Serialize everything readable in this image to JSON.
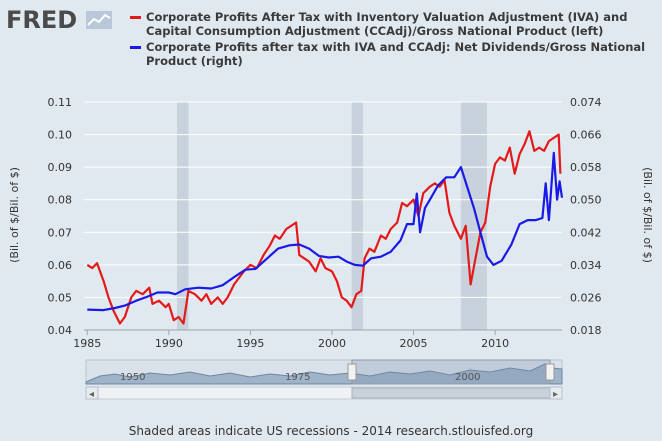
{
  "header": {
    "logo_text": "FRED",
    "logo_icon": "chart-line-icon"
  },
  "legend": {
    "items": [
      {
        "label": "Corporate Profits After Tax with Inventory Valuation Adjustment (IVA) and Capital Consumption Adjustment (CCAdj)/Gross National Product (left)",
        "color": "#e41a1a"
      },
      {
        "label": "Corporate Profits after tax with IVA and CCAdj: Net Dividends/Gross National Product (right)",
        "color": "#1a1ae6"
      }
    ]
  },
  "footer": {
    "text": "Shaded areas indicate US recessions - 2014 research.stlouisfed.org"
  },
  "navigator": {
    "labels": [
      "1950",
      "1975",
      "2000"
    ],
    "left_arrow": "◂",
    "right_arrow": "▸"
  },
  "chart_data": {
    "type": "line",
    "ylabel_left": "(Bil. of $/Bil. of $)",
    "ylabel_right": "(Bil. of $/Bil. of $)",
    "x_ticks": [
      1985,
      1990,
      1995,
      2000,
      2005,
      2010
    ],
    "y_left_ticks": [
      "0.04",
      "0.05",
      "0.06",
      "0.07",
      "0.08",
      "0.09",
      "0.10",
      "0.11"
    ],
    "y_right_ticks": [
      "0.018",
      "0.026",
      "0.034",
      "0.042",
      "0.050",
      "0.058",
      "0.066",
      "0.074"
    ],
    "xlim": [
      1984.8,
      2014.1
    ],
    "ylim_left": [
      0.04,
      0.11
    ],
    "ylim_right": [
      0.018,
      0.074
    ],
    "recessions": [
      [
        1990.5,
        1991.2
      ],
      [
        2001.2,
        2001.9
      ],
      [
        2007.9,
        2009.5
      ]
    ],
    "series": [
      {
        "name": "Corporate Profits After Tax with Inventory Valuation Adjustment (IVA) and Capital Consumption Adjustment (CCAdj)/Gross National Product (left)",
        "axis": "left",
        "color": "#e41a1a",
        "points": [
          [
            1985.0,
            0.06
          ],
          [
            1985.3,
            0.059
          ],
          [
            1985.6,
            0.0605
          ],
          [
            1986.0,
            0.055
          ],
          [
            1986.3,
            0.05
          ],
          [
            1986.6,
            0.046
          ],
          [
            1987.0,
            0.042
          ],
          [
            1987.3,
            0.044
          ],
          [
            1987.7,
            0.05
          ],
          [
            1988.0,
            0.052
          ],
          [
            1988.4,
            0.051
          ],
          [
            1988.8,
            0.053
          ],
          [
            1989.0,
            0.048
          ],
          [
            1989.4,
            0.049
          ],
          [
            1989.8,
            0.047
          ],
          [
            1990.0,
            0.048
          ],
          [
            1990.3,
            0.043
          ],
          [
            1990.6,
            0.044
          ],
          [
            1990.9,
            0.042
          ],
          [
            1991.2,
            0.052
          ],
          [
            1991.6,
            0.051
          ],
          [
            1992.0,
            0.049
          ],
          [
            1992.3,
            0.051
          ],
          [
            1992.6,
            0.048
          ],
          [
            1993.0,
            0.05
          ],
          [
            1993.3,
            0.048
          ],
          [
            1993.6,
            0.05
          ],
          [
            1994.0,
            0.054
          ],
          [
            1994.3,
            0.056
          ],
          [
            1994.6,
            0.058
          ],
          [
            1995.0,
            0.06
          ],
          [
            1995.4,
            0.059
          ],
          [
            1995.8,
            0.063
          ],
          [
            1996.2,
            0.066
          ],
          [
            1996.5,
            0.069
          ],
          [
            1996.8,
            0.068
          ],
          [
            1997.2,
            0.071
          ],
          [
            1997.5,
            0.072
          ],
          [
            1997.8,
            0.073
          ],
          [
            1998.0,
            0.063
          ],
          [
            1998.3,
            0.062
          ],
          [
            1998.6,
            0.061
          ],
          [
            1999.0,
            0.058
          ],
          [
            1999.3,
            0.062
          ],
          [
            1999.6,
            0.059
          ],
          [
            2000.0,
            0.058
          ],
          [
            2000.3,
            0.055
          ],
          [
            2000.6,
            0.05
          ],
          [
            2000.9,
            0.049
          ],
          [
            2001.2,
            0.047
          ],
          [
            2001.5,
            0.051
          ],
          [
            2001.8,
            0.052
          ],
          [
            2002.0,
            0.062
          ],
          [
            2002.3,
            0.065
          ],
          [
            2002.6,
            0.064
          ],
          [
            2003.0,
            0.069
          ],
          [
            2003.3,
            0.068
          ],
          [
            2003.6,
            0.071
          ],
          [
            2004.0,
            0.073
          ],
          [
            2004.3,
            0.079
          ],
          [
            2004.6,
            0.078
          ],
          [
            2005.0,
            0.08
          ],
          [
            2005.3,
            0.075
          ],
          [
            2005.6,
            0.082
          ],
          [
            2006.0,
            0.084
          ],
          [
            2006.3,
            0.085
          ],
          [
            2006.6,
            0.084
          ],
          [
            2006.9,
            0.086
          ],
          [
            2007.2,
            0.076
          ],
          [
            2007.5,
            0.072
          ],
          [
            2007.9,
            0.068
          ],
          [
            2008.2,
            0.072
          ],
          [
            2008.5,
            0.054
          ],
          [
            2008.8,
            0.062
          ],
          [
            2009.1,
            0.07
          ],
          [
            2009.4,
            0.073
          ],
          [
            2009.7,
            0.084
          ],
          [
            2010.0,
            0.091
          ],
          [
            2010.3,
            0.093
          ],
          [
            2010.6,
            0.092
          ],
          [
            2010.9,
            0.096
          ],
          [
            2011.2,
            0.088
          ],
          [
            2011.5,
            0.094
          ],
          [
            2011.8,
            0.097
          ],
          [
            2012.1,
            0.101
          ],
          [
            2012.4,
            0.095
          ],
          [
            2012.7,
            0.096
          ],
          [
            2013.0,
            0.095
          ],
          [
            2013.3,
            0.098
          ],
          [
            2013.6,
            0.099
          ],
          [
            2013.9,
            0.1
          ],
          [
            2014.0,
            0.088
          ]
        ]
      },
      {
        "name": "Corporate Profits after tax with IVA and CCAdj: Net Dividends/Gross National Product (right)",
        "axis": "right",
        "color": "#1a1ae6",
        "points": [
          [
            1985.0,
            0.023
          ],
          [
            1986.0,
            0.0229
          ],
          [
            1986.7,
            0.0234
          ],
          [
            1987.3,
            0.024
          ],
          [
            1988.0,
            0.0252
          ],
          [
            1988.7,
            0.0262
          ],
          [
            1989.3,
            0.0272
          ],
          [
            1990.0,
            0.0272
          ],
          [
            1990.4,
            0.0268
          ],
          [
            1991.0,
            0.028
          ],
          [
            1991.8,
            0.0284
          ],
          [
            1992.6,
            0.0282
          ],
          [
            1993.3,
            0.029
          ],
          [
            1994.0,
            0.031
          ],
          [
            1994.7,
            0.0328
          ],
          [
            1995.3,
            0.033
          ],
          [
            1996.0,
            0.0355
          ],
          [
            1996.7,
            0.038
          ],
          [
            1997.4,
            0.0388
          ],
          [
            1998.0,
            0.039
          ],
          [
            1998.6,
            0.038
          ],
          [
            1999.2,
            0.0362
          ],
          [
            1999.8,
            0.0358
          ],
          [
            2000.4,
            0.036
          ],
          [
            2000.9,
            0.0348
          ],
          [
            2001.4,
            0.034
          ],
          [
            2001.9,
            0.0338
          ],
          [
            2002.4,
            0.0356
          ],
          [
            2003.0,
            0.036
          ],
          [
            2003.6,
            0.0372
          ],
          [
            2004.2,
            0.04
          ],
          [
            2004.6,
            0.044
          ],
          [
            2005.0,
            0.044
          ],
          [
            2005.2,
            0.0515
          ],
          [
            2005.4,
            0.042
          ],
          [
            2005.7,
            0.048
          ],
          [
            2006.0,
            0.05
          ],
          [
            2006.5,
            0.0535
          ],
          [
            2007.0,
            0.0555
          ],
          [
            2007.5,
            0.0555
          ],
          [
            2007.9,
            0.058
          ],
          [
            2008.3,
            0.053
          ],
          [
            2008.7,
            0.048
          ],
          [
            2009.1,
            0.042
          ],
          [
            2009.5,
            0.036
          ],
          [
            2009.9,
            0.034
          ],
          [
            2010.4,
            0.035
          ],
          [
            2011.0,
            0.039
          ],
          [
            2011.5,
            0.044
          ],
          [
            2012.0,
            0.045
          ],
          [
            2012.5,
            0.045
          ],
          [
            2012.9,
            0.0455
          ],
          [
            2013.1,
            0.054
          ],
          [
            2013.3,
            0.045
          ],
          [
            2013.6,
            0.0615
          ],
          [
            2013.8,
            0.05
          ],
          [
            2013.95,
            0.0545
          ],
          [
            2014.1,
            0.0505
          ]
        ]
      }
    ]
  }
}
